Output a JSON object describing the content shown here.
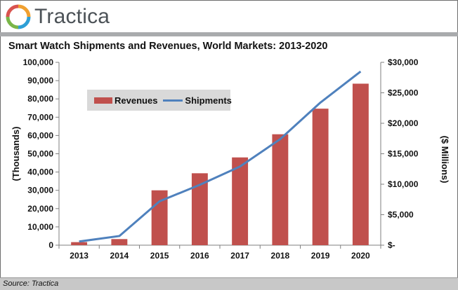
{
  "brand": {
    "name": "Tractica"
  },
  "footer": {
    "source": "Source: Tractica"
  },
  "colors": {
    "revenues": "#c0504d",
    "shipments": "#4f81bd",
    "axis": "#7f7f7f",
    "header_rule": "#a9abad"
  },
  "chart_data": {
    "type": "bar",
    "title": "Smart Watch Shipments and Revenues, World Markets: 2013-2020",
    "categories": [
      "2013",
      "2014",
      "2015",
      "2016",
      "2017",
      "2018",
      "2019",
      "2020"
    ],
    "series": [
      {
        "name": "Revenues",
        "type": "bar",
        "axis": "right",
        "values": [
          500,
          1000,
          9000,
          11800,
          14400,
          18200,
          22400,
          26500
        ]
      },
      {
        "name": "Shipments",
        "type": "line",
        "axis": "left",
        "values": [
          2000,
          5000,
          24000,
          33000,
          43000,
          58000,
          78000,
          95000
        ]
      }
    ],
    "ylabel": "(Thousands)",
    "y2label": "($ Millions)",
    "ylim": [
      0,
      100000
    ],
    "y2lim": [
      0,
      30000
    ],
    "yticks": [
      "0",
      "10,000",
      "20,000",
      "30,000",
      "40,000",
      "50,000",
      "60,000",
      "70,000",
      "80,000",
      "90,000",
      "100,000"
    ],
    "y2ticks": [
      "$-",
      "$5,000",
      "$10,000",
      "$15,000",
      "$20,000",
      "$25,000",
      "$30,000"
    ],
    "legend": [
      "Revenues",
      "Shipments"
    ],
    "legend_position": "top-left",
    "grid": false
  }
}
